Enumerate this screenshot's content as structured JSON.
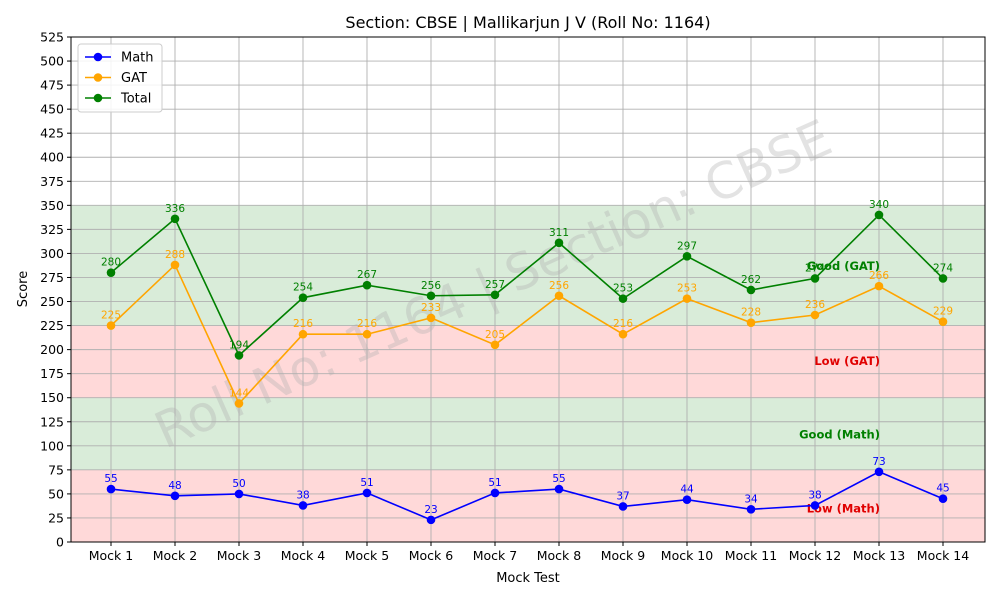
{
  "chart_data": {
    "type": "line",
    "title": "Section: CBSE | Mallikarjun J V (Roll No: 1164)",
    "xlabel": "Mock Test",
    "ylabel": "Score",
    "ylim": [
      0,
      525
    ],
    "ytick_step": 25,
    "grid": true,
    "legend": "top-left",
    "watermark": "Roll No: 1164 | Section: CBSE",
    "categories": [
      "Mock 1",
      "Mock 2",
      "Mock 3",
      "Mock 4",
      "Mock 5",
      "Mock 6",
      "Mock 7",
      "Mock 8",
      "Mock 9",
      "Mock 10",
      "Mock 11",
      "Mock 12",
      "Mock 13",
      "Mock 14"
    ],
    "series": [
      {
        "name": "Math",
        "color": "#0000ff",
        "values": [
          55,
          48,
          50,
          38,
          51,
          23,
          51,
          55,
          37,
          44,
          34,
          38,
          73,
          45
        ]
      },
      {
        "name": "GAT",
        "color": "#ffa500",
        "values": [
          225,
          288,
          144,
          216,
          216,
          233,
          205,
          256,
          216,
          253,
          228,
          236,
          266,
          229
        ]
      },
      {
        "name": "Total",
        "color": "#008000",
        "values": [
          280,
          336,
          194,
          254,
          267,
          256,
          257,
          311,
          253,
          297,
          262,
          274,
          340,
          274
        ]
      }
    ],
    "zones": [
      {
        "label": "Low (Math)",
        "from": 0,
        "to": 75,
        "color": "#ffd9d9",
        "text_color": "#e00000",
        "label_y": 35
      },
      {
        "label": "Good (Math)",
        "from": 75,
        "to": 150,
        "color": "#d9ecd9",
        "text_color": "#008000",
        "label_y": 112
      },
      {
        "label": "Low (GAT)",
        "from": 150,
        "to": 225,
        "color": "#ffd9d9",
        "text_color": "#e00000",
        "label_y": 188
      },
      {
        "label": "Good (GAT)",
        "from": 225,
        "to": 350,
        "color": "#d9ecd9",
        "text_color": "#008000",
        "label_y": 287
      }
    ]
  }
}
